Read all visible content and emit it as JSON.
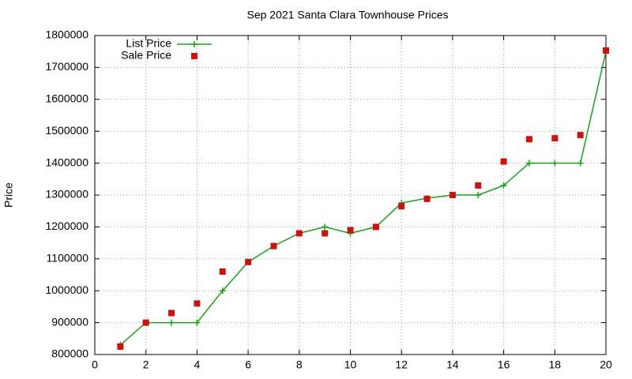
{
  "chart_data": {
    "type": "line",
    "title": "Sep 2021 Santa Clara Townhouse Prices",
    "y_label": "Price",
    "x": [
      1,
      2,
      3,
      4,
      5,
      6,
      7,
      8,
      9,
      10,
      11,
      12,
      13,
      14,
      15,
      16,
      17,
      18,
      19,
      20
    ],
    "series": [
      {
        "name": "List Price",
        "color": "#1aa01a",
        "style": "linespoints",
        "values": [
          830000,
          900000,
          900000,
          900000,
          1000000,
          1090000,
          1140000,
          1180000,
          1200000,
          1180000,
          1200000,
          1275000,
          1290000,
          1300000,
          1300000,
          1330000,
          1400000,
          1400000,
          1400000,
          1750000
        ]
      },
      {
        "name": "Sale Price",
        "color": "#cc1111",
        "style": "points",
        "values": [
          825000,
          900000,
          930000,
          960000,
          1060000,
          1090000,
          1140000,
          1180000,
          1180000,
          1190000,
          1200000,
          1265000,
          1288000,
          1300000,
          1330000,
          1405000,
          1475000,
          1478000,
          1488000,
          1753000
        ]
      }
    ],
    "xlim": [
      0,
      20
    ],
    "xticks": [
      0,
      2,
      4,
      6,
      8,
      10,
      12,
      14,
      16,
      18,
      20
    ],
    "ylim": [
      800000,
      1800000
    ],
    "yticks": [
      800000,
      900000,
      1000000,
      1100000,
      1200000,
      1300000,
      1400000,
      1500000,
      1600000,
      1700000,
      1800000
    ],
    "grid": true,
    "legend": "top-left"
  }
}
